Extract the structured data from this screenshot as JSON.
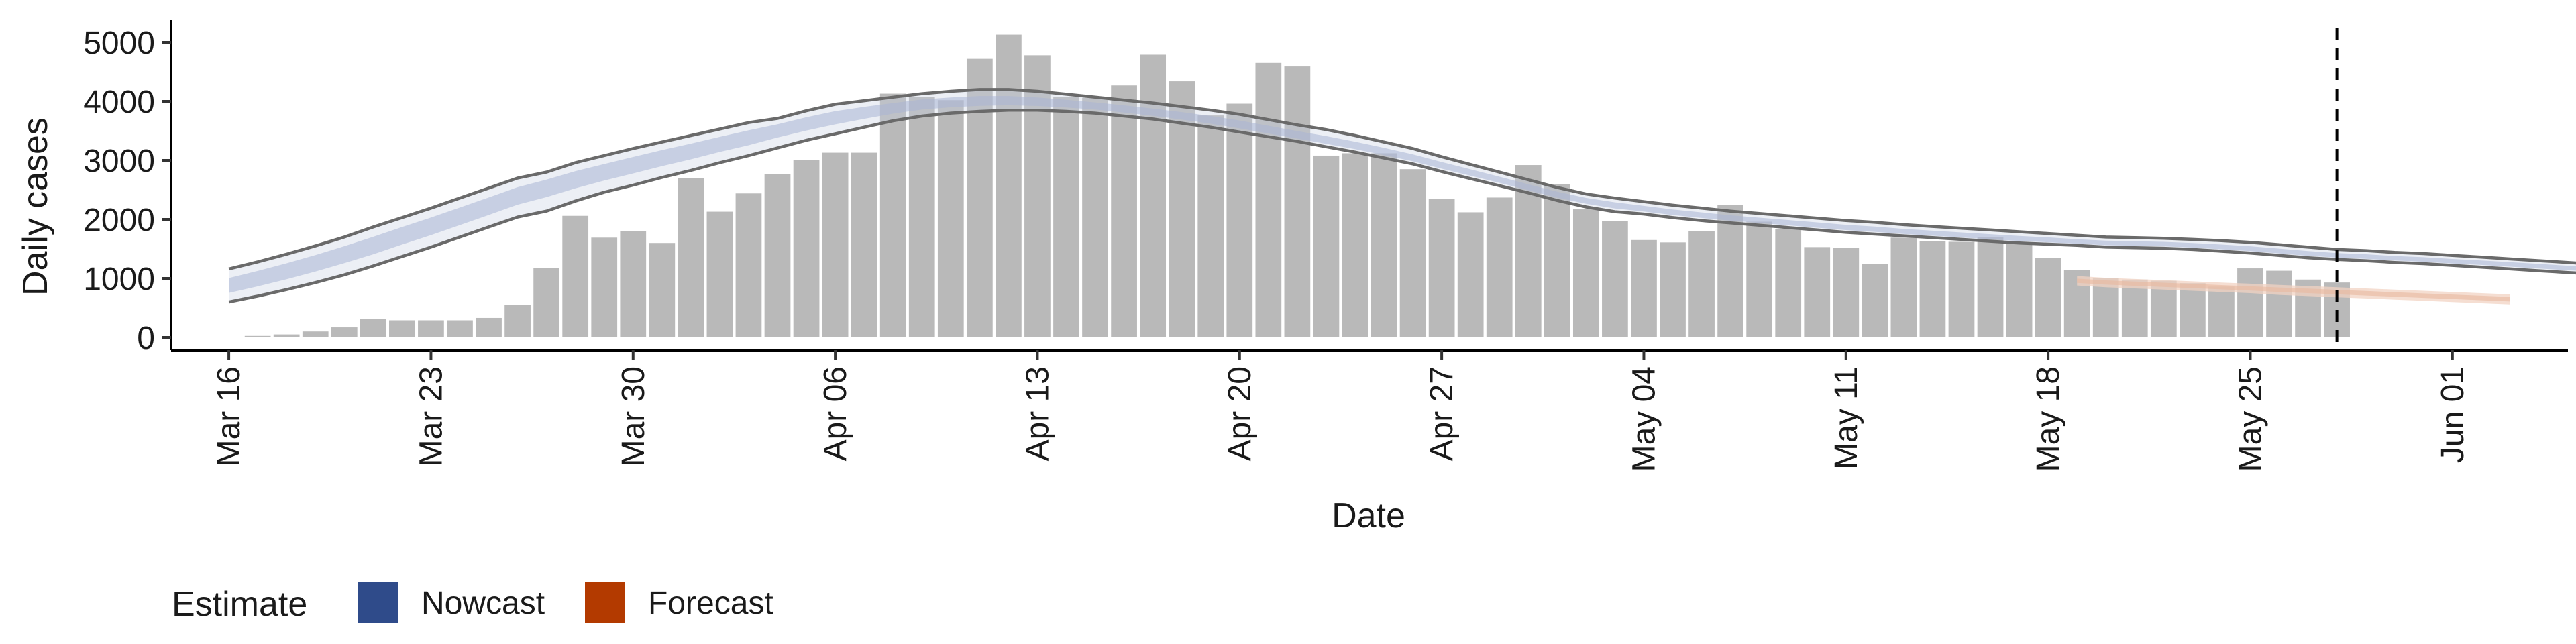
{
  "chart_data": {
    "type": "bar",
    "xlabel": "Date",
    "ylabel": "Daily cases",
    "ylim": [
      0,
      5000
    ],
    "yticks": [
      0,
      1000,
      2000,
      3000,
      4000,
      5000
    ],
    "xlim": [
      "2020-03-14",
      "2020-06-05"
    ],
    "xticks": [
      {
        "date": "2020-03-16",
        "label": "Mar 16"
      },
      {
        "date": "2020-03-23",
        "label": "Mar 23"
      },
      {
        "date": "2020-03-30",
        "label": "Mar 30"
      },
      {
        "date": "2020-04-06",
        "label": "Apr 06"
      },
      {
        "date": "2020-04-13",
        "label": "Apr 13"
      },
      {
        "date": "2020-04-20",
        "label": "Apr 20"
      },
      {
        "date": "2020-04-27",
        "label": "Apr 27"
      },
      {
        "date": "2020-05-04",
        "label": "May 04"
      },
      {
        "date": "2020-05-11",
        "label": "May 11"
      },
      {
        "date": "2020-05-18",
        "label": "May 18"
      },
      {
        "date": "2020-05-25",
        "label": "May 25"
      },
      {
        "date": "2020-06-01",
        "label": "Jun 01"
      }
    ],
    "grid": false,
    "legend_position": "bottom-left",
    "vline_date": "2020-05-28",
    "bars": {
      "start_date": "2020-03-16",
      "color": "#b9b9b9",
      "values": [
        10,
        25,
        50,
        100,
        170,
        310,
        290,
        290,
        290,
        330,
        550,
        1180,
        2060,
        1690,
        1800,
        1600,
        2700,
        2130,
        2440,
        2770,
        3010,
        3130,
        3130,
        4130,
        4070,
        4020,
        4720,
        5130,
        4780,
        4080,
        4060,
        4270,
        4790,
        4340,
        3760,
        3960,
        4650,
        4590,
        3080,
        3120,
        3120,
        2850,
        2350,
        2120,
        2370,
        2920,
        2600,
        2170,
        1970,
        1650,
        1610,
        1800,
        2240,
        1960,
        1830,
        1530,
        1520,
        1250,
        1690,
        1630,
        1620,
        1700,
        1590,
        1350,
        1140,
        1010,
        980,
        960,
        920,
        860,
        1170,
        1130,
        980,
        930
      ]
    },
    "series": [
      {
        "name": "Nowcast",
        "color": "#2f4b8a",
        "start_date": "2020-03-16",
        "median": [
          880,
          1000,
          1130,
          1270,
          1420,
          1570,
          1740,
          1900,
          2070,
          2240,
          2420,
          2570,
          2700,
          2820,
          2940,
          3060,
          3170,
          3290,
          3400,
          3530,
          3640,
          3740,
          3820,
          3890,
          3950,
          3980,
          4000,
          4000,
          3980,
          3950,
          3910,
          3860,
          3800,
          3740,
          3670,
          3590,
          3500,
          3410,
          3320,
          3230,
          3130,
          3020,
          2900,
          2780,
          2660,
          2530,
          2410,
          2310,
          2230,
          2170,
          2110,
          2060,
          2010,
          1970,
          1930,
          1890,
          1850,
          1820,
          1780,
          1750,
          1720,
          1690,
          1660,
          1640,
          1610,
          1590,
          1580,
          1570,
          1550,
          1520,
          1490,
          1450,
          1410,
          1380,
          1360,
          1330,
          1310,
          1280,
          1260,
          1230,
          1200,
          1170,
          1150,
          1120,
          1090,
          1060,
          1030,
          1010,
          990,
          970,
          960,
          950,
          950
        ],
        "lower": [
          600,
          700,
          810,
          930,
          1060,
          1210,
          1370,
          1530,
          1700,
          1870,
          2040,
          2140,
          2310,
          2460,
          2580,
          2710,
          2830,
          2960,
          3080,
          3210,
          3340,
          3450,
          3560,
          3670,
          3750,
          3800,
          3830,
          3850,
          3850,
          3830,
          3800,
          3750,
          3700,
          3630,
          3560,
          3480,
          3400,
          3320,
          3230,
          3140,
          3040,
          2940,
          2810,
          2690,
          2570,
          2450,
          2320,
          2210,
          2130,
          2090,
          2030,
          1980,
          1940,
          1900,
          1860,
          1820,
          1780,
          1750,
          1720,
          1690,
          1660,
          1630,
          1600,
          1580,
          1560,
          1530,
          1520,
          1510,
          1490,
          1460,
          1430,
          1390,
          1350,
          1320,
          1300,
          1270,
          1250,
          1220,
          1190,
          1160,
          1130,
          1100,
          1070,
          1040,
          1010,
          980,
          950,
          930,
          910,
          900,
          890,
          880,
          880
        ],
        "upper": [
          1160,
          1280,
          1410,
          1550,
          1700,
          1870,
          2030,
          2190,
          2360,
          2530,
          2700,
          2800,
          2960,
          3080,
          3200,
          3310,
          3420,
          3530,
          3640,
          3710,
          3840,
          3950,
          4010,
          4070,
          4130,
          4170,
          4200,
          4200,
          4170,
          4120,
          4070,
          4020,
          3970,
          3910,
          3850,
          3780,
          3690,
          3600,
          3520,
          3420,
          3310,
          3200,
          3060,
          2930,
          2800,
          2670,
          2540,
          2430,
          2360,
          2300,
          2240,
          2190,
          2140,
          2100,
          2060,
          2020,
          1980,
          1950,
          1910,
          1880,
          1850,
          1820,
          1790,
          1760,
          1730,
          1700,
          1690,
          1680,
          1660,
          1640,
          1610,
          1570,
          1530,
          1490,
          1470,
          1440,
          1420,
          1390,
          1360,
          1330,
          1300,
          1270,
          1240,
          1210,
          1180,
          1150,
          1120,
          1100,
          1080,
          1060,
          1050,
          1040,
          1040
        ]
      },
      {
        "name": "Forecast",
        "color": "#b33a00",
        "start_date": "2020-05-19",
        "median": [
          960,
          930,
          910,
          890,
          870,
          850,
          830,
          810,
          790,
          770,
          750,
          730,
          710,
          690,
          670,
          650
        ],
        "lower": [
          880,
          850,
          830,
          810,
          790,
          770,
          750,
          720,
          700,
          680,
          660,
          640,
          620,
          600,
          580,
          560
        ],
        "upper": [
          1040,
          1010,
          990,
          970,
          950,
          930,
          910,
          890,
          870,
          850,
          830,
          810,
          790,
          770,
          750,
          730
        ]
      }
    ],
    "legend": {
      "title": "Estimate",
      "items": [
        {
          "label": "Nowcast",
          "color": "#2f4b8a"
        },
        {
          "label": "Forecast",
          "color": "#b33a00"
        }
      ]
    }
  }
}
